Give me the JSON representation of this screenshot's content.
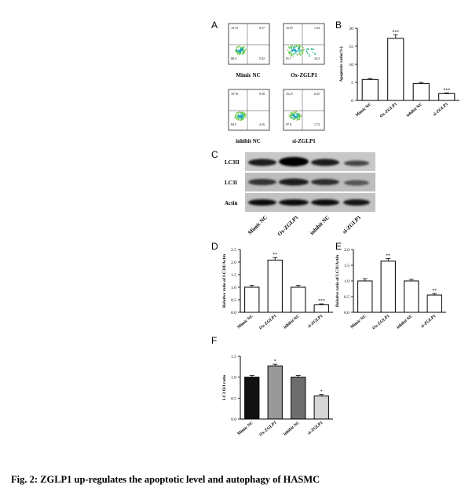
{
  "panel_labels": {
    "a": "A",
    "b": "B",
    "c": "C",
    "d": "D",
    "e": "E",
    "f": "F"
  },
  "flow": [
    {
      "label": "Mimic NC",
      "q": [
        "10.72",
        "0.57",
        "88.4",
        "5.92"
      ]
    },
    {
      "label": "Ox-ZGLP1",
      "q": [
        "16.97",
        "1.04",
        "81.7",
        "16.5"
      ]
    },
    {
      "label": "inhibit NC",
      "q": [
        "10.76",
        "0.50",
        "84.5",
        "4.16"
      ]
    },
    {
      "label": "si-ZGLP1",
      "q": [
        "16.27",
        "0.25",
        "97.8",
        "1.72"
      ]
    }
  ],
  "western": {
    "rows": [
      "LC3II",
      "LC3I",
      "Actin"
    ],
    "lanes": [
      "Mimic NC",
      "Ox-ZGLP1",
      "inhibit NC",
      "si-ZGLP1"
    ]
  },
  "caption": "Fig. 2: ZGLP1 up-regulates the apoptotic level and autophagy of HASMC",
  "chart_data": [
    {
      "type": "bar",
      "panel": "B",
      "categories": [
        "Mimic NC",
        "Ox-ZGLP1",
        "inhibit NC",
        "si-ZGLP1"
      ],
      "values": [
        5.8,
        17.2,
        4.7,
        1.9
      ],
      "errors": [
        0.3,
        1.0,
        0.3,
        0.2
      ],
      "significance": [
        "",
        "***",
        "",
        "***"
      ],
      "ylabel": "Apoptosis ratio(%)",
      "ylim": [
        0,
        20
      ],
      "yticks": [
        "0",
        "5",
        "10",
        "15",
        "20"
      ]
    },
    {
      "type": "bar",
      "panel": "D",
      "categories": [
        "Mimic NC",
        "Ox-ZGLP1",
        "inhibit NC",
        "si-ZGLP1"
      ],
      "values": [
        1.0,
        2.08,
        1.0,
        0.3
      ],
      "errors": [
        0.08,
        0.1,
        0.08,
        0.04
      ],
      "significance": [
        "",
        "**",
        "",
        "***"
      ],
      "ylabel": "Relative ratio of LC3II/Actin",
      "ylim": [
        0,
        2.5
      ],
      "yticks": [
        "0.0",
        "0.5",
        "1.0",
        "1.5",
        "2.0",
        "2.5"
      ]
    },
    {
      "type": "bar",
      "panel": "E",
      "categories": [
        "Mimic NC",
        "Ox-ZGLP1",
        "inhibit NC",
        "si-ZGLP1"
      ],
      "values": [
        1.0,
        1.63,
        1.0,
        0.55
      ],
      "errors": [
        0.07,
        0.08,
        0.05,
        0.05
      ],
      "significance": [
        "",
        "**",
        "",
        "**"
      ],
      "ylabel": "Relative ratio of LC3I/Actin",
      "ylim": [
        0,
        2.0
      ],
      "yticks": [
        "0.0",
        "0.5",
        "1.0",
        "1.5",
        "2.0"
      ]
    },
    {
      "type": "bar",
      "panel": "F",
      "categories": [
        "Mimic NC",
        "Ox-ZGLP1",
        "inhibit NC",
        "si-ZGLP1"
      ],
      "values": [
        1.0,
        1.27,
        1.0,
        0.55
      ],
      "errors": [
        0.04,
        0.04,
        0.04,
        0.04
      ],
      "significance": [
        "",
        "*",
        "",
        "*"
      ],
      "ylabel": "LC3 II/I ratio",
      "ylim": [
        0,
        1.5
      ],
      "yticks": [
        "0.0",
        "0.5",
        "1.0",
        "1.5"
      ],
      "colors": [
        "#111111",
        "#999999",
        "#6e6e6e",
        "#d6d6d6"
      ]
    }
  ]
}
